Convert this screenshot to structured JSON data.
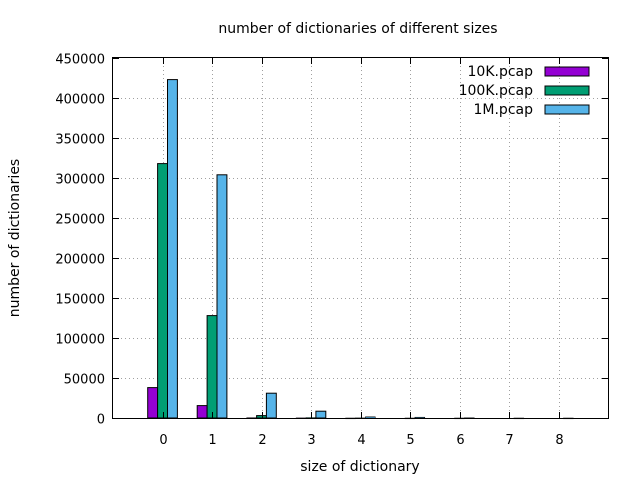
{
  "chart_data": {
    "type": "bar",
    "title": "number of dictionaries of different sizes",
    "xlabel": "size of dictionary",
    "ylabel": "number of dictionaries",
    "categories": [
      "0",
      "1",
      "2",
      "3",
      "4",
      "5",
      "6",
      "7",
      "8"
    ],
    "x_range": [
      -1,
      9
    ],
    "ylim": [
      0,
      450000
    ],
    "yticks": [
      0,
      50000,
      100000,
      150000,
      200000,
      250000,
      300000,
      350000,
      400000,
      450000
    ],
    "grid": true,
    "legend_position": "top-right",
    "series": [
      {
        "name": "10K.pcap",
        "color": "#9400d3",
        "values": [
          38000,
          15500,
          400,
          100,
          20,
          0,
          0,
          0,
          0
        ]
      },
      {
        "name": "100K.pcap",
        "color": "#009e73",
        "values": [
          318000,
          128000,
          3000,
          500,
          150,
          30,
          10,
          0,
          0
        ]
      },
      {
        "name": "1M.pcap",
        "color": "#56b4e9",
        "values": [
          423000,
          304000,
          31000,
          8500,
          1500,
          1000,
          200,
          50,
          10
        ]
      }
    ]
  }
}
